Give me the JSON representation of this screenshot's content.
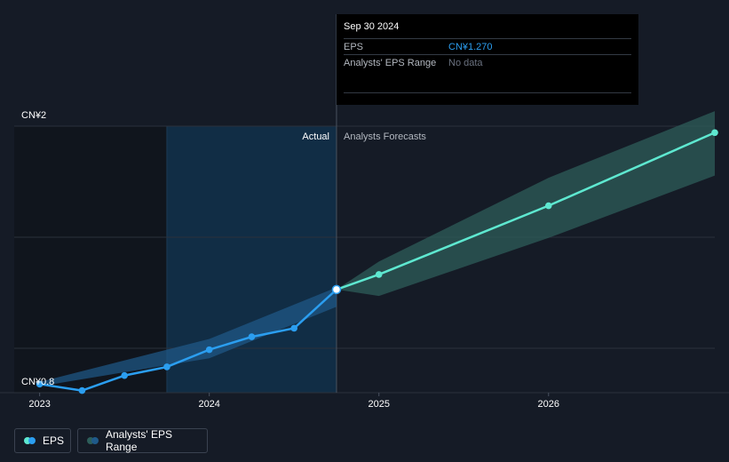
{
  "tooltip": {
    "date": "Sep 30 2024",
    "rows": [
      {
        "label": "EPS",
        "value": "CN¥1.270"
      },
      {
        "label": "Analysts' EPS Range",
        "value": "No data"
      }
    ]
  },
  "regions": {
    "actual": "Actual",
    "forecast": "Analysts Forecasts"
  },
  "legend": {
    "eps": "EPS",
    "range": "Analysts' EPS Range"
  },
  "colors": {
    "actual_line": "#2b9ef0",
    "forecast_line": "#5ee8d0",
    "forecast_band": "#2d5e5a",
    "actual_band": "#1f5a8a",
    "highlight": "#12304a"
  },
  "chart_data": {
    "type": "line",
    "y_ticks": [
      {
        "value": 0.8,
        "label": "CN¥0.8"
      },
      {
        "value": 2.0,
        "label": "CN¥2"
      }
    ],
    "x_ticks": [
      {
        "value": 2023.0,
        "label": "2023"
      },
      {
        "value": 2024.0,
        "label": "2024"
      },
      {
        "value": 2025.0,
        "label": "2025"
      },
      {
        "value": 2026.0,
        "label": "2026"
      }
    ],
    "xlim": [
      2022.85,
      2026.98
    ],
    "ylim": [
      0.79,
      2.03
    ],
    "divider_x": 2024.75,
    "highlight_start": 2023.75,
    "series": [
      {
        "name": "EPS",
        "kind": "actual",
        "points": [
          [
            2023.0,
            0.83
          ],
          [
            2023.25,
            0.8
          ],
          [
            2023.5,
            0.87
          ],
          [
            2023.75,
            0.91
          ],
          [
            2024.0,
            0.99
          ],
          [
            2024.25,
            1.05
          ],
          [
            2024.5,
            1.09
          ],
          [
            2024.75,
            1.27
          ]
        ]
      },
      {
        "name": "EPS forecast",
        "kind": "forecast",
        "points": [
          [
            2024.75,
            1.27
          ],
          [
            2025.0,
            1.34
          ],
          [
            2026.0,
            1.66
          ],
          [
            2026.98,
            2.0
          ]
        ]
      }
    ],
    "actual_band": {
      "upper": [
        [
          2023.0,
          0.84
        ],
        [
          2024.0,
          1.04
        ],
        [
          2024.75,
          1.28
        ]
      ],
      "lower": [
        [
          2023.0,
          0.82
        ],
        [
          2024.0,
          0.95
        ],
        [
          2024.75,
          1.19
        ]
      ]
    },
    "forecast_band": {
      "upper": [
        [
          2024.75,
          1.27
        ],
        [
          2025.0,
          1.4
        ],
        [
          2026.0,
          1.79
        ],
        [
          2026.98,
          2.1
        ]
      ],
      "lower": [
        [
          2024.75,
          1.27
        ],
        [
          2025.0,
          1.24
        ],
        [
          2026.0,
          1.51
        ],
        [
          2026.98,
          1.8
        ]
      ]
    }
  }
}
